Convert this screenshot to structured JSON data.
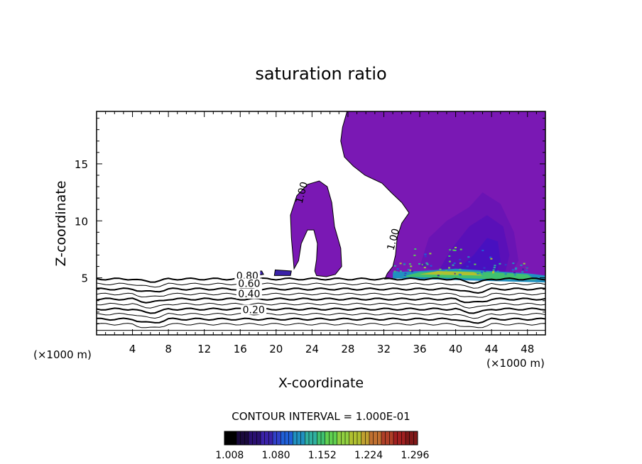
{
  "chart_data": {
    "type": "contour",
    "title": "saturation ratio",
    "xlabel": "X-coordinate",
    "ylabel": "Z-coordinate",
    "x_unit": "(×1000 m)",
    "x_unit_right": "(×1000 m)",
    "xlim": [
      0,
      50
    ],
    "ylim": [
      0,
      19.6
    ],
    "x_ticks": [
      4,
      8,
      12,
      16,
      20,
      24,
      28,
      32,
      36,
      40,
      44,
      48
    ],
    "y_ticks": [
      5,
      10,
      15
    ],
    "contour_interval_text": "CONTOUR INTERVAL = 1.000E-01",
    "contour_labels": [
      {
        "text": "0.80",
        "x": 16.8,
        "z": 4.9
      },
      {
        "text": "0.60",
        "x": 17.0,
        "z": 4.2
      },
      {
        "text": "0.40",
        "x": 17.0,
        "z": 3.3
      },
      {
        "text": "0.20",
        "x": 17.5,
        "z": 1.9
      },
      {
        "text": "1.00",
        "x": 23.2,
        "z": 12.4
      },
      {
        "text": "1.00",
        "x": 33.4,
        "z": 8.3
      }
    ],
    "colorbar": {
      "ticks": [
        "1.008",
        "1.080",
        "1.152",
        "1.224",
        "1.296"
      ],
      "range": [
        1.0,
        1.3
      ],
      "colors": [
        "#000000",
        "#1a0a3c",
        "#2a1070",
        "#3a22a8",
        "#3040c8",
        "#2060d8",
        "#2090c0",
        "#30b0a0",
        "#40c070",
        "#60d050",
        "#90d040",
        "#b0c030",
        "#c0a030",
        "#c07030",
        "#b04028",
        "#a02020",
        "#801818"
      ]
    },
    "regions": {
      "low_levels": [
        0.1,
        0.2,
        0.3,
        0.4,
        0.5,
        0.6,
        0.7,
        0.8,
        0.9,
        1.0
      ],
      "cloud_fill_color": "#7a18b4",
      "cloud_core_colors": [
        "#6a14b4",
        "#5a10b8",
        "#4810c0"
      ]
    }
  }
}
